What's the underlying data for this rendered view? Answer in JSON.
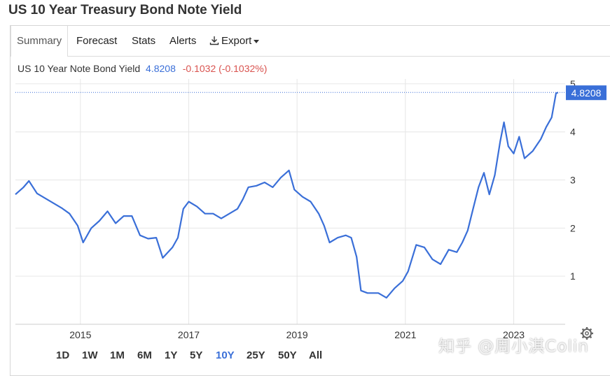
{
  "page_title": "US 10 Year Treasury Bond Note Yield",
  "tabs": [
    {
      "label": "Summary"
    },
    {
      "label": "Forecast"
    },
    {
      "label": "Stats"
    },
    {
      "label": "Alerts"
    },
    {
      "label": "Export"
    }
  ],
  "legend": {
    "name": "US 10 Year Note Bond Yield",
    "last": "4.8208",
    "change": "-0.1032 (-0.1032%)"
  },
  "last_value_badge": "4.8208",
  "ranges": [
    {
      "label": "1D"
    },
    {
      "label": "1W"
    },
    {
      "label": "1M"
    },
    {
      "label": "6M"
    },
    {
      "label": "1Y"
    },
    {
      "label": "5Y"
    },
    {
      "label": "10Y"
    },
    {
      "label": "25Y"
    },
    {
      "label": "50Y"
    },
    {
      "label": "All"
    }
  ],
  "selected_range": "10Y",
  "watermark": "知乎 @周小淇Colin",
  "colors": {
    "line": "#3a6fd8",
    "negative": "#d9534f",
    "badge": "#3a6fd8"
  },
  "chart_data": {
    "type": "line",
    "x_ticks": [
      "2015",
      "2017",
      "2019",
      "2021",
      "2023"
    ],
    "y_ticks": [
      "1",
      "2",
      "3",
      "4",
      "5"
    ],
    "ylim": [
      0,
      5.1
    ],
    "xlim": [
      2013.8,
      2023.95
    ],
    "grid": true,
    "series": [
      {
        "values": [
          [
            2013.8,
            2.7
          ],
          [
            2013.95,
            2.85
          ],
          [
            2014.05,
            2.98
          ],
          [
            2014.2,
            2.72
          ],
          [
            2014.35,
            2.62
          ],
          [
            2014.5,
            2.52
          ],
          [
            2014.65,
            2.42
          ],
          [
            2014.8,
            2.3
          ],
          [
            2014.95,
            2.05
          ],
          [
            2015.05,
            1.7
          ],
          [
            2015.2,
            2.0
          ],
          [
            2015.35,
            2.15
          ],
          [
            2015.5,
            2.35
          ],
          [
            2015.65,
            2.1
          ],
          [
            2015.8,
            2.25
          ],
          [
            2015.95,
            2.25
          ],
          [
            2016.1,
            1.85
          ],
          [
            2016.25,
            1.78
          ],
          [
            2016.4,
            1.8
          ],
          [
            2016.52,
            1.38
          ],
          [
            2016.7,
            1.6
          ],
          [
            2016.8,
            1.8
          ],
          [
            2016.9,
            2.4
          ],
          [
            2017.0,
            2.55
          ],
          [
            2017.15,
            2.45
          ],
          [
            2017.3,
            2.3
          ],
          [
            2017.45,
            2.3
          ],
          [
            2017.6,
            2.2
          ],
          [
            2017.75,
            2.3
          ],
          [
            2017.9,
            2.4
          ],
          [
            2018.0,
            2.6
          ],
          [
            2018.1,
            2.85
          ],
          [
            2018.25,
            2.88
          ],
          [
            2018.4,
            2.95
          ],
          [
            2018.55,
            2.85
          ],
          [
            2018.7,
            3.05
          ],
          [
            2018.85,
            3.2
          ],
          [
            2018.95,
            2.8
          ],
          [
            2019.1,
            2.65
          ],
          [
            2019.25,
            2.55
          ],
          [
            2019.4,
            2.3
          ],
          [
            2019.5,
            2.05
          ],
          [
            2019.6,
            1.7
          ],
          [
            2019.75,
            1.8
          ],
          [
            2019.9,
            1.85
          ],
          [
            2020.0,
            1.8
          ],
          [
            2020.1,
            1.4
          ],
          [
            2020.18,
            0.7
          ],
          [
            2020.3,
            0.65
          ],
          [
            2020.5,
            0.65
          ],
          [
            2020.65,
            0.55
          ],
          [
            2020.8,
            0.75
          ],
          [
            2020.95,
            0.9
          ],
          [
            2021.05,
            1.1
          ],
          [
            2021.2,
            1.65
          ],
          [
            2021.35,
            1.6
          ],
          [
            2021.5,
            1.35
          ],
          [
            2021.65,
            1.25
          ],
          [
            2021.8,
            1.55
          ],
          [
            2021.95,
            1.5
          ],
          [
            2022.05,
            1.7
          ],
          [
            2022.15,
            1.95
          ],
          [
            2022.25,
            2.4
          ],
          [
            2022.35,
            2.85
          ],
          [
            2022.45,
            3.15
          ],
          [
            2022.55,
            2.7
          ],
          [
            2022.65,
            3.1
          ],
          [
            2022.75,
            3.8
          ],
          [
            2022.82,
            4.2
          ],
          [
            2022.9,
            3.7
          ],
          [
            2023.0,
            3.55
          ],
          [
            2023.1,
            3.9
          ],
          [
            2023.2,
            3.45
          ],
          [
            2023.35,
            3.6
          ],
          [
            2023.5,
            3.85
          ],
          [
            2023.6,
            4.1
          ],
          [
            2023.7,
            4.3
          ],
          [
            2023.78,
            4.8
          ],
          [
            2023.82,
            4.82
          ]
        ]
      }
    ]
  }
}
